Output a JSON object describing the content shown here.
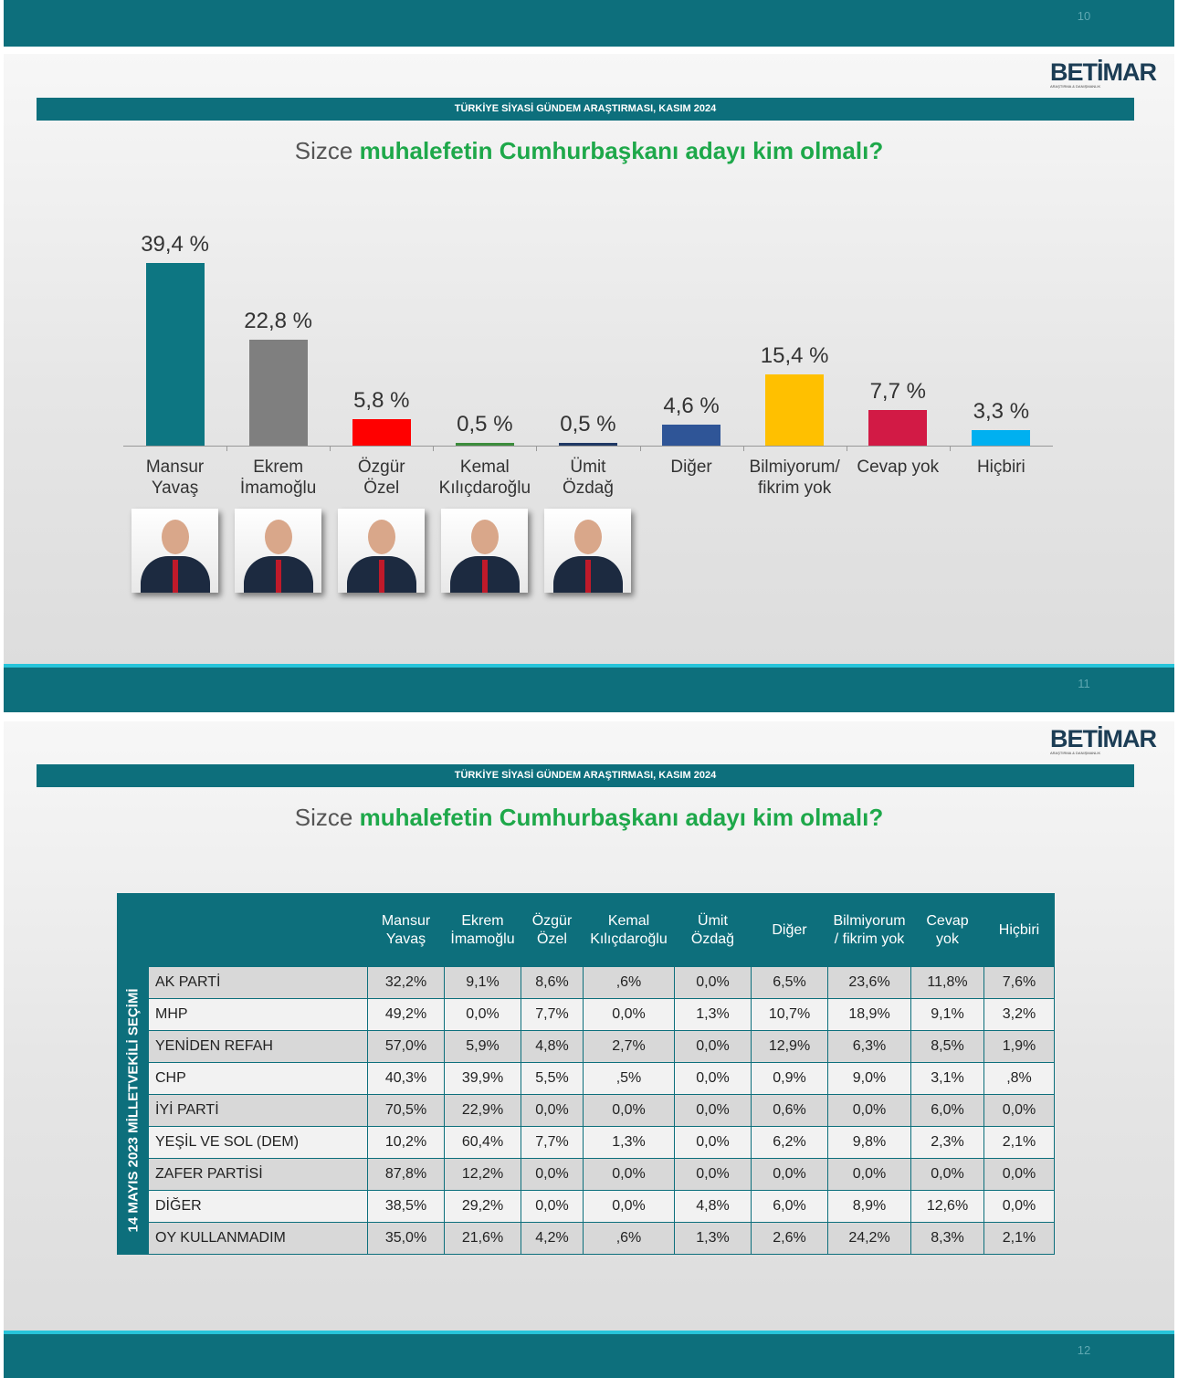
{
  "page_numbers": [
    "10",
    "11",
    "12"
  ],
  "logo": {
    "name": "BETİMAR",
    "tagline": "ARAŞTIRMA & DANIŞMANLIK"
  },
  "header": "TÜRKİYE SİYASİ GÜNDEM ARAŞTIRMASI, KASIM 2024",
  "question": {
    "lead": "Sizce",
    "emphasis": "muhalefetin Cumhurbaşkanı adayı kim olmalı?"
  },
  "chart_data": {
    "type": "bar",
    "categories": [
      "Mansur\nYavaş",
      "Ekrem\nİmamoğlu",
      "Özgür\nÖzel",
      "Kemal\nKılıçdaroğlu",
      "Ümit\nÖzdağ",
      "Diğer",
      "Bilmiyorum/\nfikrim yok",
      "Cevap yok",
      "Hiçbiri"
    ],
    "values": [
      39.4,
      22.8,
      5.8,
      0.5,
      0.5,
      4.6,
      15.4,
      7.7,
      3.3
    ],
    "value_labels": [
      "39,4 %",
      "22,8 %",
      "5,8 %",
      "0,5 %",
      "0,5 %",
      "4,6 %",
      "15,4 %",
      "7,7 %",
      "3,3 %"
    ],
    "colors": [
      "#0d7682",
      "#7f7f7f",
      "#ff0000",
      "#3c8c3c",
      "#1f3864",
      "#2f5597",
      "#ffc000",
      "#d21a45",
      "#00b0f0"
    ]
  },
  "table": {
    "side_label": "14 MAYIS 2023 MİLLETVEKİLİ SEÇİMİ",
    "columns": [
      "Mansur\nYavaş",
      "Ekrem\nİmamoğlu",
      "Özgür\nÖzel",
      "Kemal\nKılıçdaroğlu",
      "Ümit\nÖzdağ",
      "Diğer",
      "Bilmiyorum\n/ fikrim yok",
      "Cevap\nyok",
      "Hiçbiri"
    ],
    "rows": [
      {
        "label": "AK PARTİ",
        "values": [
          "32,2%",
          "9,1%",
          "8,6%",
          ",6%",
          "0,0%",
          "6,5%",
          "23,6%",
          "11,8%",
          "7,6%"
        ]
      },
      {
        "label": "MHP",
        "values": [
          "49,2%",
          "0,0%",
          "7,7%",
          "0,0%",
          "1,3%",
          "10,7%",
          "18,9%",
          "9,1%",
          "3,2%"
        ]
      },
      {
        "label": "YENİDEN REFAH",
        "values": [
          "57,0%",
          "5,9%",
          "4,8%",
          "2,7%",
          "0,0%",
          "12,9%",
          "6,3%",
          "8,5%",
          "1,9%"
        ]
      },
      {
        "label": "CHP",
        "values": [
          "40,3%",
          "39,9%",
          "5,5%",
          ",5%",
          "0,0%",
          "0,9%",
          "9,0%",
          "3,1%",
          ",8%"
        ]
      },
      {
        "label": "İYİ PARTİ",
        "values": [
          "70,5%",
          "22,9%",
          "0,0%",
          "0,0%",
          "0,0%",
          "0,6%",
          "0,0%",
          "6,0%",
          "0,0%"
        ]
      },
      {
        "label": "YEŞİL VE SOL (DEM)",
        "values": [
          "10,2%",
          "60,4%",
          "7,7%",
          "1,3%",
          "0,0%",
          "6,2%",
          "9,8%",
          "2,3%",
          "2,1%"
        ]
      },
      {
        "label": "ZAFER PARTİSİ",
        "values": [
          "87,8%",
          "12,2%",
          "0,0%",
          "0,0%",
          "0,0%",
          "0,0%",
          "0,0%",
          "0,0%",
          "0,0%"
        ]
      },
      {
        "label": "DİĞER",
        "values": [
          "38,5%",
          "29,2%",
          "0,0%",
          "0,0%",
          "4,8%",
          "6,0%",
          "8,9%",
          "12,6%",
          "0,0%"
        ]
      },
      {
        "label": "OY KULLANMADIM",
        "values": [
          "35,0%",
          "21,6%",
          "4,2%",
          ",6%",
          "1,3%",
          "2,6%",
          "24,2%",
          "8,3%",
          "2,1%"
        ]
      }
    ]
  }
}
